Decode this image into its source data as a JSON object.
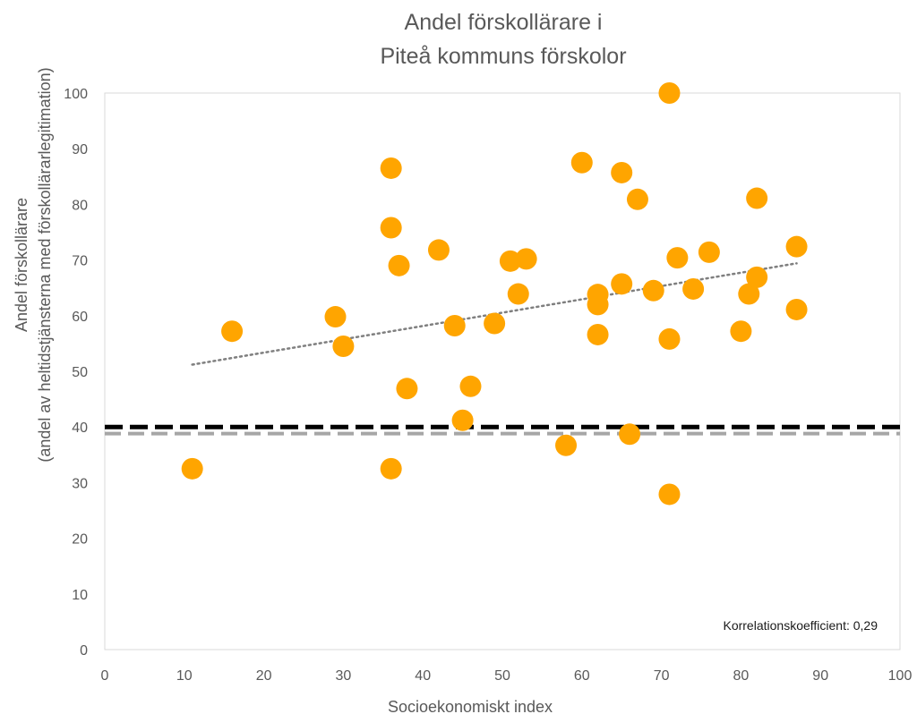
{
  "chart_data": {
    "type": "scatter",
    "title_lines": [
      "Andel förskollärare i",
      "Piteå kommuns förskolor"
    ],
    "xlabel": "Socioekonomiskt index",
    "ylabel_lines": [
      "Andel förskollärare",
      "(andel av heltidstjänsterna med förskollärarlegitimation)"
    ],
    "xlim": [
      0,
      100
    ],
    "ylim": [
      0,
      100
    ],
    "xticks": [
      "0",
      "10",
      "20",
      "30",
      "40",
      "50",
      "60",
      "70",
      "80",
      "90",
      "100"
    ],
    "yticks": [
      "0",
      "10",
      "20",
      "30",
      "40",
      "50",
      "60",
      "70",
      "80",
      "90",
      "100"
    ],
    "x_tick_values": [
      0,
      10,
      20,
      30,
      40,
      50,
      60,
      70,
      80,
      90,
      100
    ],
    "y_tick_values": [
      0,
      10,
      20,
      30,
      40,
      50,
      60,
      70,
      80,
      90,
      100
    ],
    "grid": false,
    "marker_color": "#FFA500",
    "points": [
      {
        "x": 11,
        "y": 32.5
      },
      {
        "x": 16,
        "y": 57.2
      },
      {
        "x": 29,
        "y": 59.8
      },
      {
        "x": 30,
        "y": 54.5
      },
      {
        "x": 36,
        "y": 86.5
      },
      {
        "x": 36,
        "y": 75.8
      },
      {
        "x": 37,
        "y": 69
      },
      {
        "x": 38,
        "y": 46.9
      },
      {
        "x": 36,
        "y": 32.5
      },
      {
        "x": 42,
        "y": 71.8
      },
      {
        "x": 44,
        "y": 58.2
      },
      {
        "x": 45,
        "y": 41.2
      },
      {
        "x": 46,
        "y": 47.3
      },
      {
        "x": 49,
        "y": 58.6
      },
      {
        "x": 51,
        "y": 69.8
      },
      {
        "x": 52,
        "y": 63.9
      },
      {
        "x": 53,
        "y": 70.2
      },
      {
        "x": 58,
        "y": 36.7
      },
      {
        "x": 60,
        "y": 87.5
      },
      {
        "x": 62,
        "y": 63.8
      },
      {
        "x": 62,
        "y": 62
      },
      {
        "x": 62,
        "y": 56.6
      },
      {
        "x": 65,
        "y": 85.7
      },
      {
        "x": 65,
        "y": 65.7
      },
      {
        "x": 66,
        "y": 38.7
      },
      {
        "x": 67,
        "y": 80.9
      },
      {
        "x": 69,
        "y": 64.5
      },
      {
        "x": 71,
        "y": 100
      },
      {
        "x": 71,
        "y": 55.8
      },
      {
        "x": 71,
        "y": 27.9
      },
      {
        "x": 72,
        "y": 70.4
      },
      {
        "x": 74,
        "y": 64.8
      },
      {
        "x": 76,
        "y": 71.4
      },
      {
        "x": 80,
        "y": 57.2
      },
      {
        "x": 81,
        "y": 63.9
      },
      {
        "x": 82,
        "y": 81.1
      },
      {
        "x": 82,
        "y": 66.9
      },
      {
        "x": 87,
        "y": 72.4
      },
      {
        "x": 87,
        "y": 61.1
      }
    ],
    "trendline": {
      "style": "dotted",
      "color": "#7F7F7F",
      "x": [
        11,
        87
      ],
      "y": [
        51.2,
        69.4
      ]
    },
    "reference_lines": [
      {
        "y": 40,
        "color": "#000000",
        "style": "dashed"
      },
      {
        "y": 38.8,
        "color": "#A6A6A6",
        "style": "dashed"
      }
    ],
    "annotation": "Korrelationskoefficient:  0,29"
  }
}
